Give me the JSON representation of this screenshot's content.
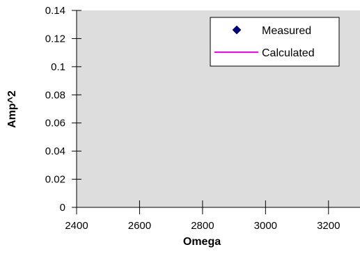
{
  "chart_data": {
    "type": "scatter",
    "xlabel": "Omega",
    "ylabel": "Amp^2",
    "xlim": [
      2400,
      3300
    ],
    "ylim": [
      0,
      0.14
    ],
    "x_ticks": [
      "2400",
      "2600",
      "2800",
      "3000",
      "3200"
    ],
    "y_ticks": [
      "0",
      "0.02",
      "0.04",
      "0.06",
      "0.08",
      "0.1",
      "0.12",
      "0.14"
    ],
    "grid": false,
    "plot_background": "#dddddd",
    "legend_position": "top-right",
    "series": [
      {
        "name": "Measured",
        "marker": "diamond",
        "color": "#000080",
        "x": [],
        "y": []
      },
      {
        "name": "Calculated",
        "line": "solid",
        "color": "#ff00ff",
        "x": [],
        "y": []
      }
    ]
  }
}
